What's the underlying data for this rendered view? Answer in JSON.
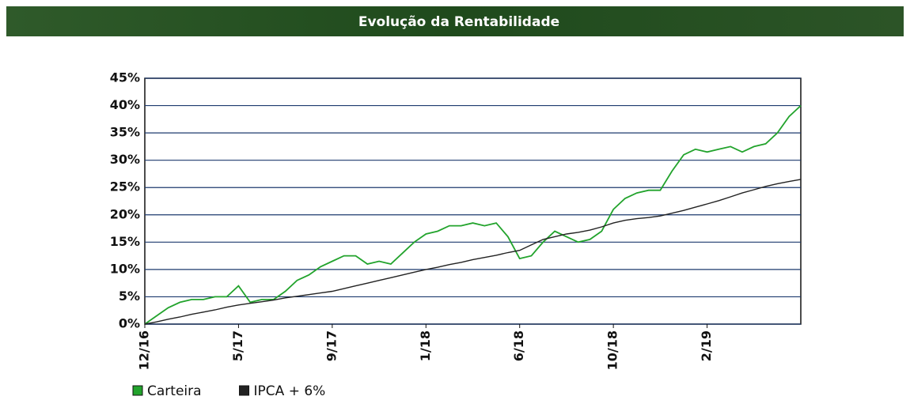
{
  "chart_data": {
    "type": "line",
    "title": "Evolução da Rentabilidade",
    "categories": [
      "12/16",
      null,
      null,
      null,
      null,
      null,
      null,
      null,
      "5/17",
      null,
      null,
      null,
      null,
      null,
      null,
      null,
      "9/17",
      null,
      null,
      null,
      null,
      null,
      null,
      null,
      "1/18",
      null,
      null,
      null,
      null,
      null,
      null,
      null,
      "6/18",
      null,
      null,
      null,
      null,
      null,
      null,
      null,
      "10/18",
      null,
      null,
      null,
      null,
      null,
      null,
      null,
      "2/19",
      null,
      null,
      null,
      null,
      null,
      null,
      null,
      null
    ],
    "series": [
      {
        "name": "Carteira",
        "color": "#22a32c",
        "values": [
          0,
          1.5,
          3,
          4,
          4.5,
          4.5,
          5,
          5,
          7,
          4,
          4.5,
          4.5,
          6,
          8,
          9,
          10.5,
          11.5,
          12.5,
          12.5,
          11,
          11.5,
          11,
          13,
          15,
          16.5,
          17,
          18,
          18,
          18.5,
          18,
          18.5,
          16,
          12,
          12.5,
          15,
          17,
          16,
          15,
          15.5,
          17,
          21,
          23,
          24,
          24.5,
          24.5,
          28,
          31,
          32,
          31.5,
          32,
          32.5,
          31.5,
          32.5,
          33,
          35,
          38,
          40
        ]
      },
      {
        "name": "IPCA + 6%",
        "color": "#222222",
        "values": [
          0,
          0.4,
          0.9,
          1.3,
          1.8,
          2.2,
          2.6,
          3.1,
          3.5,
          3.8,
          4.1,
          4.4,
          4.8,
          5.1,
          5.4,
          5.7,
          6.0,
          6.5,
          7,
          7.5,
          8,
          8.5,
          9,
          9.5,
          10,
          10.4,
          10.9,
          11.3,
          11.8,
          12.2,
          12.6,
          13.1,
          13.5,
          14.5,
          15.5,
          16,
          16.5,
          16.8,
          17.2,
          17.8,
          18.5,
          19,
          19.3,
          19.5,
          19.8,
          20.3,
          20.8,
          21.4,
          22,
          22.6,
          23.3,
          24,
          24.6,
          25.2,
          25.7,
          26.1,
          26.5
        ]
      }
    ],
    "ylim": [
      0,
      45
    ],
    "yticks": [
      {
        "value": 0,
        "label": "0%"
      },
      {
        "value": 5,
        "label": "5%"
      },
      {
        "value": 10,
        "label": "10%"
      },
      {
        "value": 15,
        "label": "15%"
      },
      {
        "value": 20,
        "label": "20%"
      },
      {
        "value": 25,
        "label": "25%"
      },
      {
        "value": 30,
        "label": "30%"
      },
      {
        "value": 35,
        "label": "35%"
      },
      {
        "value": 40,
        "label": "40%"
      },
      {
        "value": 45,
        "label": "45%"
      }
    ],
    "grid": true
  }
}
